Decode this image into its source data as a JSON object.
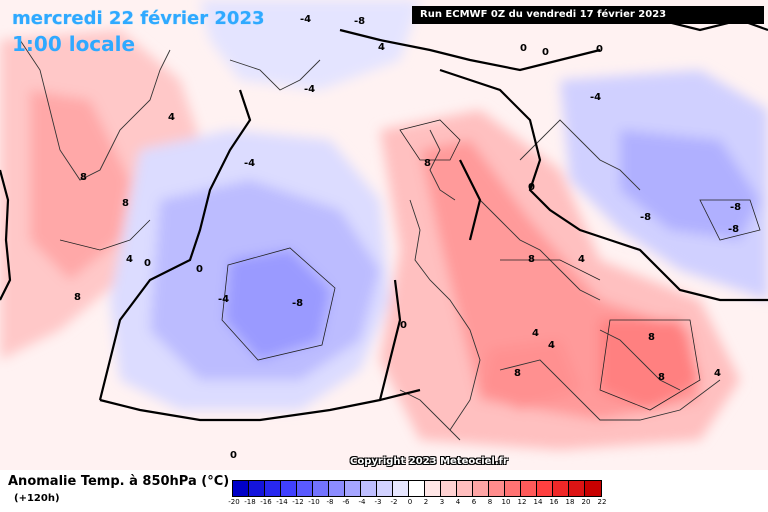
{
  "header": {
    "date": "mercredi 22 février 2023",
    "time": "1:00 locale",
    "run": "Run ECMWF 0Z du vendredi 17 février 2023"
  },
  "footer": {
    "copyright": "Copyright 2023 Meteociel.fr",
    "legend_title": "Anomalie Temp. à 850hPa (°C)",
    "legend_subtitle": "(+120h)"
  },
  "legend": {
    "ticks": [
      "-20",
      "-18",
      "-16",
      "-14",
      "-12",
      "-10",
      "-8",
      "-6",
      "-4",
      "-3",
      "-2",
      "0",
      "2",
      "3",
      "4",
      "6",
      "8",
      "10",
      "12",
      "14",
      "16",
      "18",
      "20",
      "22"
    ],
    "colors": [
      "#0000c8",
      "#1414dc",
      "#2828f0",
      "#4040ff",
      "#5a5aff",
      "#7373ff",
      "#8c8cff",
      "#a5a5ff",
      "#bebeff",
      "#d2d2ff",
      "#e6e6ff",
      "#ffffff",
      "#ffe6e6",
      "#ffd2d2",
      "#ffbebe",
      "#ffa5a5",
      "#ff8c8c",
      "#ff7373",
      "#ff5a5a",
      "#ff4040",
      "#f02828",
      "#dc1414",
      "#c80000"
    ]
  },
  "contour_labels": [
    "-8",
    "-8",
    "-8",
    "-8",
    "-8",
    "-4",
    "-4",
    "-4",
    "-4",
    "-4",
    "0",
    "0",
    "0",
    "0",
    "0",
    "0",
    "0",
    "0",
    "4",
    "4",
    "4",
    "4",
    "4",
    "4",
    "4",
    "8",
    "8",
    "8",
    "8",
    "8",
    "8",
    "8",
    "8"
  ]
}
